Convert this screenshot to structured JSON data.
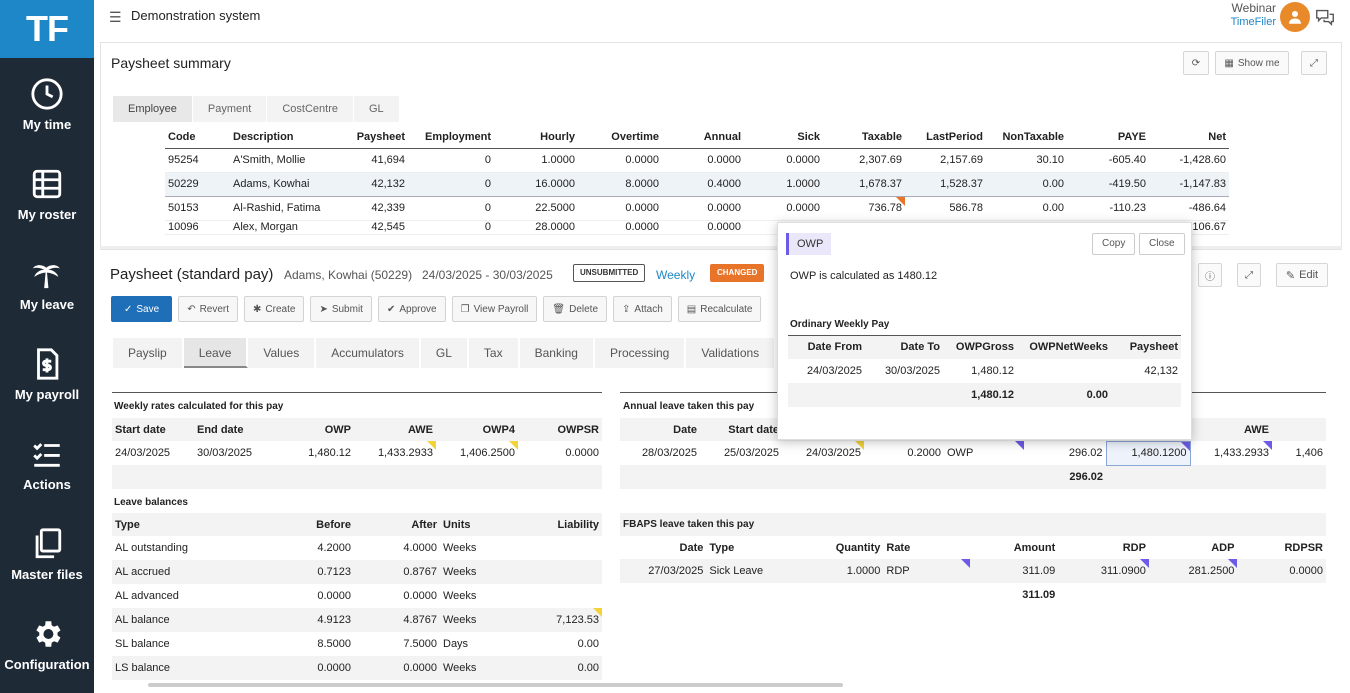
{
  "app": {
    "logo": "TF",
    "system_title": "Demonstration system",
    "user_line1": "Webinar",
    "user_line2": "TimeFiler"
  },
  "nav": [
    {
      "label": "My time",
      "icon": "clock-icon"
    },
    {
      "label": "My roster",
      "icon": "table-icon"
    },
    {
      "label": "My leave",
      "icon": "palm-tree-icon"
    },
    {
      "label": "My payroll",
      "icon": "payroll-document-icon"
    },
    {
      "label": "Actions",
      "icon": "checklist-icon"
    },
    {
      "label": "Master files",
      "icon": "copy-files-icon"
    },
    {
      "label": "Configuration",
      "icon": "gear-icon"
    }
  ],
  "summary": {
    "title": "Paysheet summary",
    "show_me": "Show me",
    "tabs": [
      "Employee",
      "Payment",
      "CostCentre",
      "GL"
    ],
    "columns": [
      "Code",
      "Description",
      "Paysheet",
      "Employment",
      "Hourly",
      "Overtime",
      "Annual",
      "Sick",
      "Taxable",
      "LastPeriod",
      "NonTaxable",
      "PAYE",
      "Net"
    ],
    "rows": [
      [
        "95254",
        "A'Smith, Mollie",
        "41,694",
        "0",
        "1.0000",
        "0.0000",
        "0.0000",
        "0.0000",
        "2,307.69",
        "2,157.69",
        "30.10",
        "-605.40",
        "-1,428.60"
      ],
      [
        "50229",
        "Adams, Kowhai",
        "42,132",
        "0",
        "16.0000",
        "8.0000",
        "0.4000",
        "1.0000",
        "1,678.37",
        "1,528.37",
        "0.00",
        "-419.50",
        "-1,147.83"
      ],
      [
        "50153",
        "Al-Rashid, Fatima",
        "42,339",
        "0",
        "22.5000",
        "0.0000",
        "0.0000",
        "0.0000",
        "736.78",
        "586.78",
        "0.00",
        "-110.23",
        "-486.64"
      ],
      [
        "10096",
        "Alex, Morgan",
        "42,545",
        "0",
        "28.0000",
        "0.0000",
        "0.0000",
        "",
        "",
        "",
        "",
        "",
        "106.67"
      ]
    ]
  },
  "paysheet": {
    "title": "Paysheet (standard pay)",
    "employee": "Adams, Kowhai (50229)",
    "period": "24/03/2025 - 30/03/2025",
    "status": "UNSUBMITTED",
    "frequency": "Weekly",
    "changed": "CHANGED",
    "edit": "Edit",
    "toolbar": [
      "Save",
      "Revert",
      "Create",
      "Submit",
      "Approve",
      "View Payroll",
      "Delete",
      "Attach",
      "Recalculate"
    ],
    "tabs": [
      "Payslip",
      "Leave",
      "Values",
      "Accumulators",
      "GL",
      "Tax",
      "Banking",
      "Processing",
      "Validations"
    ]
  },
  "weekly_rates": {
    "heading": "Weekly rates calculated for this pay",
    "columns": [
      "Start date",
      "End date",
      "OWP",
      "AWE",
      "OWP4",
      "OWPSR"
    ],
    "rows": [
      [
        "24/03/2025",
        "30/03/2025",
        "1,480.12",
        "1,433.2933",
        "1,406.2500",
        "0.0000"
      ]
    ]
  },
  "leave_balances": {
    "heading": "Leave balances",
    "columns": [
      "Type",
      "Before",
      "After",
      "Units",
      "Liability"
    ],
    "rows": [
      [
        "AL outstanding",
        "4.2000",
        "4.0000",
        "Weeks",
        ""
      ],
      [
        "AL accrued",
        "0.7123",
        "0.8767",
        "Weeks",
        ""
      ],
      [
        "AL advanced",
        "0.0000",
        "0.0000",
        "Weeks",
        ""
      ],
      [
        "AL balance",
        "4.9123",
        "4.8767",
        "Weeks",
        "7,123.53"
      ],
      [
        "SL balance",
        "8.5000",
        "7.5000",
        "Days",
        "0.00"
      ],
      [
        "LS balance",
        "0.0000",
        "0.0000",
        "Weeks",
        "0.00"
      ]
    ]
  },
  "annual_leave": {
    "heading": "Annual leave taken this pay",
    "columns": [
      "Date",
      "Start date",
      "",
      "",
      "",
      "",
      "",
      "AWE",
      ""
    ],
    "rows": [
      [
        "28/03/2025",
        "25/03/2025",
        "24/03/2025",
        "0.2000",
        "OWP",
        "296.02",
        "1,480.1200",
        "1,433.2933",
        "1,406"
      ]
    ],
    "total": "296.02"
  },
  "fbaps": {
    "heading": "FBAPS leave taken this pay",
    "columns": [
      "Date",
      "Type",
      "Quantity",
      "Rate",
      "Amount",
      "RDP",
      "ADP",
      "RDPSR"
    ],
    "rows": [
      [
        "27/03/2025",
        "Sick Leave",
        "1.0000",
        "RDP",
        "311.09",
        "311.0900",
        "281.2500",
        "0.0000"
      ]
    ],
    "total": "311.09"
  },
  "popup": {
    "tag": "OWP",
    "copy": "Copy",
    "close": "Close",
    "description": "OWP is calculated as 1480.12",
    "subheading": "Ordinary Weekly Pay",
    "columns": [
      "Date From",
      "Date To",
      "OWPGross",
      "OWPNetWeeks",
      "Paysheet"
    ],
    "rows": [
      [
        "24/03/2025",
        "30/03/2025",
        "1,480.12",
        "",
        "42,132"
      ]
    ],
    "totals": [
      "",
      "",
      "1,480.12",
      "0.00",
      ""
    ]
  },
  "colors": {
    "brand": "#1e87c8",
    "sidebar": "#1f2a37",
    "save": "#1e6fb8",
    "changed": "#e8742a",
    "marker_yellow": "#f2d43a",
    "marker_purple": "#6d5ae8"
  }
}
